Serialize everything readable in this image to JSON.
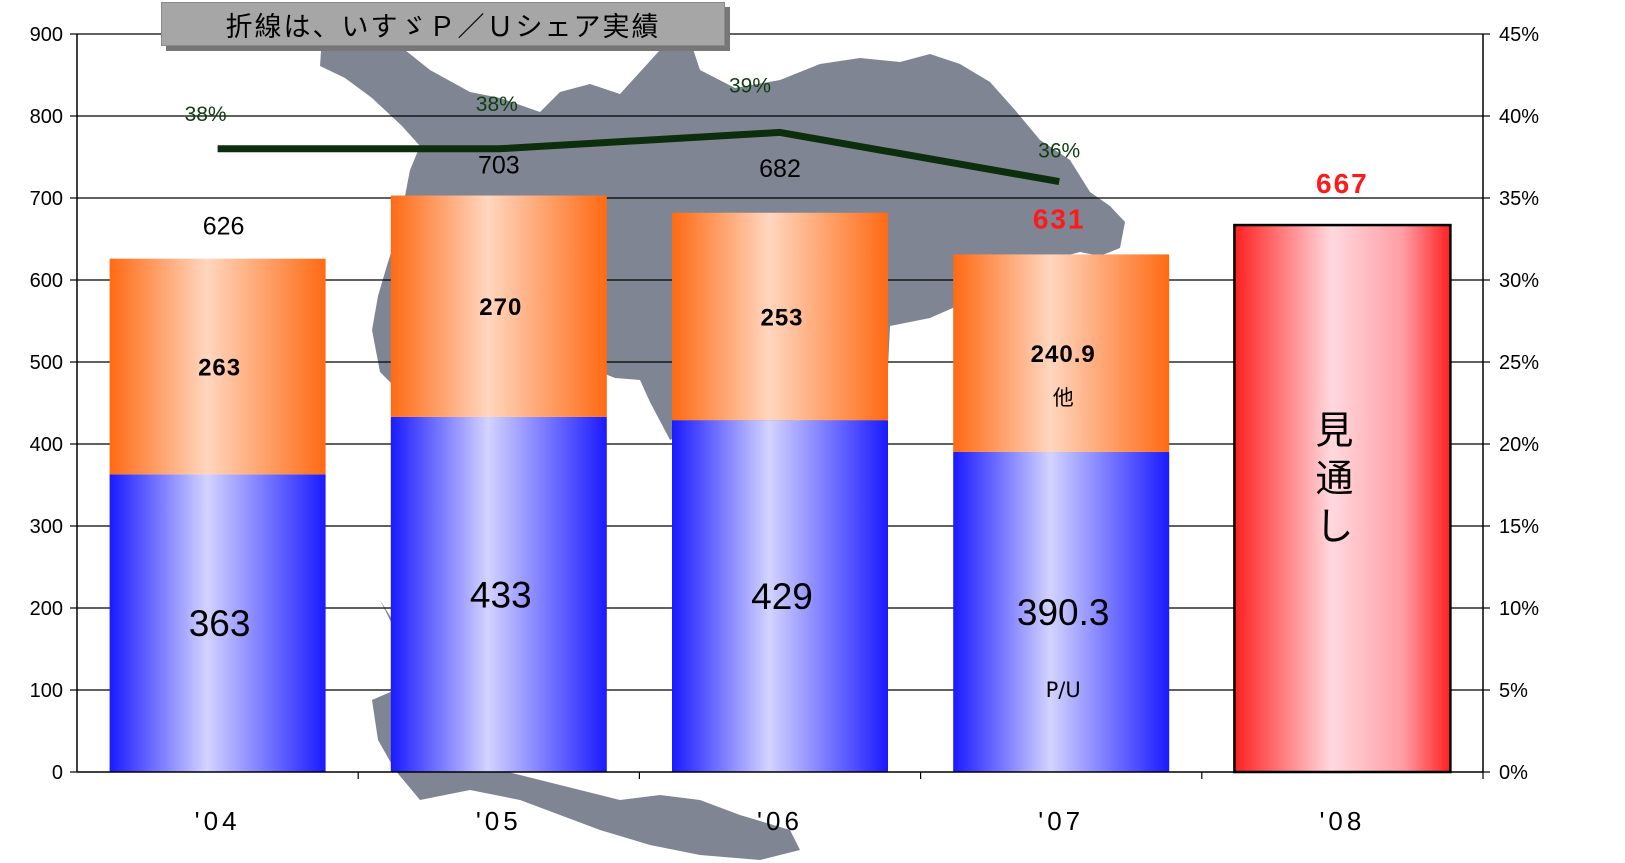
{
  "chart_data": {
    "type": "bar",
    "title": "折線は、いすゞＰ／Ｕシェア実績",
    "categories": [
      "'04",
      "'05",
      "'06",
      "'07",
      "'08"
    ],
    "y_left": {
      "ylim": [
        0,
        900
      ],
      "ticks": [
        0,
        100,
        200,
        300,
        400,
        500,
        600,
        700,
        800,
        900
      ]
    },
    "y_right": {
      "ylim": [
        0,
        45
      ],
      "ticks": [
        "0%",
        "5%",
        "10%",
        "15%",
        "20%",
        "25%",
        "30%",
        "35%",
        "40%",
        "45%"
      ]
    },
    "series": [
      {
        "name": "P/U",
        "values": [
          363,
          433,
          429,
          390.3,
          null
        ],
        "labels": [
          "363",
          "433",
          "429",
          "390.3",
          ""
        ]
      },
      {
        "name": "他",
        "values": [
          263,
          270,
          253,
          240.9,
          null
        ],
        "labels": [
          "263",
          "270",
          "253",
          "240.9",
          ""
        ]
      },
      {
        "name": "見通し",
        "values": [
          null,
          null,
          null,
          null,
          667
        ],
        "vertical_label": [
          "見",
          "通",
          "し"
        ]
      }
    ],
    "totals": [
      {
        "label": "626",
        "value": 626,
        "highlight": false
      },
      {
        "label": "703",
        "value": 703,
        "highlight": false
      },
      {
        "label": "682",
        "value": 682,
        "highlight": false
      },
      {
        "label": "631",
        "value": 631,
        "highlight": true
      },
      {
        "label": "667",
        "value": 667,
        "highlight": true
      }
    ],
    "share_line": {
      "values": [
        38,
        38,
        39,
        36
      ],
      "labels": [
        "38%",
        "38%",
        "39%",
        "36%"
      ],
      "color": "#0c2e0c"
    },
    "colors": {
      "pu_bar": "#1a1aff",
      "other_bar": "#ff6a14",
      "forecast_bar": "#ff2020",
      "red_label": "#ff1a1a",
      "map_background": "#7f8593"
    },
    "grid": true
  }
}
